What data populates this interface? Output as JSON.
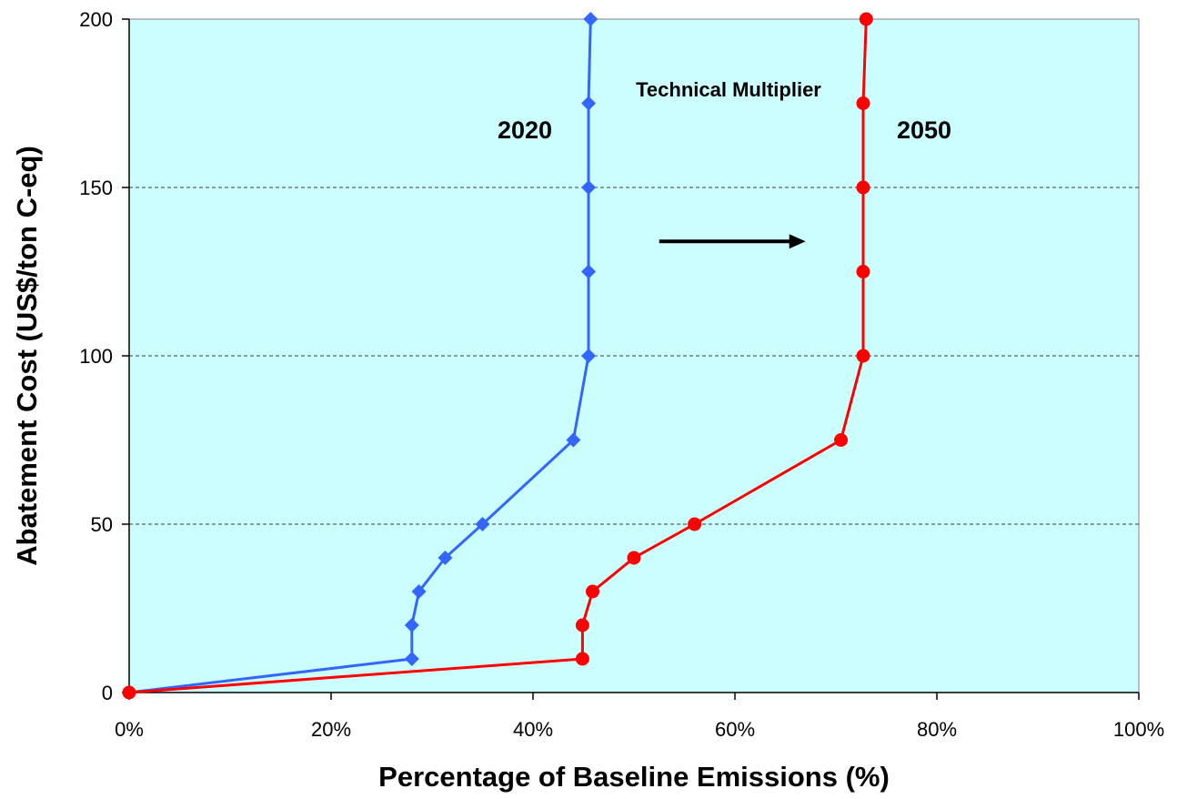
{
  "chart_data": {
    "type": "line",
    "title": "",
    "xlabel": "Percentage of Baseline Emissions (%)",
    "ylabel": "Abatement Cost (US$/ton C-eq)",
    "xlim": [
      0,
      1
    ],
    "ylim": [
      0,
      200
    ],
    "x_ticks": [
      0,
      0.2,
      0.4,
      0.6,
      0.8,
      1.0
    ],
    "x_tick_labels": [
      "0%",
      "20%",
      "40%",
      "60%",
      "80%",
      "100%"
    ],
    "y_ticks": [
      0,
      50,
      100,
      150,
      200
    ],
    "y_tick_labels": [
      "0",
      "50",
      "100",
      "150",
      "200"
    ],
    "grid": "horizontal dashed",
    "plot_background": "#ccffff",
    "series": [
      {
        "name": "2020",
        "color": "#3366ff",
        "marker": "diamond",
        "points": [
          [
            0.0,
            0
          ],
          [
            0.28,
            10
          ],
          [
            0.28,
            20
          ],
          [
            0.287,
            30
          ],
          [
            0.313,
            40
          ],
          [
            0.35,
            50
          ],
          [
            0.44,
            75
          ],
          [
            0.455,
            100
          ],
          [
            0.455,
            125
          ],
          [
            0.455,
            150
          ],
          [
            0.455,
            175
          ],
          [
            0.457,
            200
          ]
        ]
      },
      {
        "name": "2050",
        "color": "#ff0000",
        "marker": "circle",
        "points": [
          [
            0.0,
            0
          ],
          [
            0.449,
            10
          ],
          [
            0.449,
            20
          ],
          [
            0.459,
            30
          ],
          [
            0.5,
            40
          ],
          [
            0.56,
            50
          ],
          [
            0.705,
            75
          ],
          [
            0.727,
            100
          ],
          [
            0.727,
            125
          ],
          [
            0.727,
            150
          ],
          [
            0.727,
            175
          ],
          [
            0.73,
            200
          ]
        ]
      }
    ],
    "annotations": {
      "label_2020": "2020",
      "label_2050": "2050",
      "multiplier_label": "Technical Multiplier",
      "arrow": {
        "from": [
          0.525,
          134
        ],
        "to": [
          0.67,
          134
        ],
        "direction": "right"
      }
    }
  }
}
